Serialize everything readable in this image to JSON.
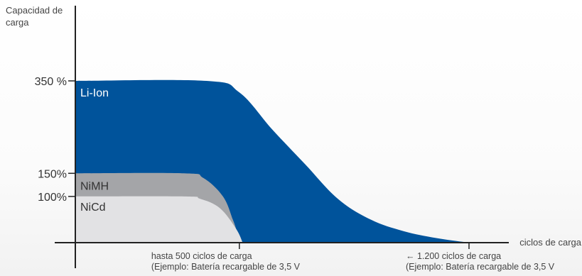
{
  "chart_data": {
    "type": "area",
    "ylabel_lines": [
      "Capacidad de",
      "carga"
    ],
    "xlabel": "ciclos de carga",
    "y_ticks": [
      {
        "value": 350,
        "label": "350 %"
      },
      {
        "value": 150,
        "label": "150%"
      },
      {
        "value": 100,
        "label": "100%"
      }
    ],
    "x_ticks": [
      {
        "value": 500,
        "lines": [
          "hasta 500 ciclos de carga",
          "(Ejemplo: Batería recargable de 3,5 V"
        ]
      },
      {
        "value": 1200,
        "lines": [
          "← 1.200 ciclos de carga",
          "(Ejemplo: Batería recargable de 3,5 V"
        ]
      }
    ],
    "xlim": [
      0,
      1500
    ],
    "ylim": [
      0,
      350
    ],
    "series": [
      {
        "name": "Li-Ion",
        "color": "#00539b",
        "text_color": "#ffffff",
        "points": [
          [
            0,
            350
          ],
          [
            400,
            350
          ],
          [
            500,
            325
          ],
          [
            600,
            245
          ],
          [
            700,
            170
          ],
          [
            800,
            95
          ],
          [
            900,
            50
          ],
          [
            1000,
            25
          ],
          [
            1100,
            10
          ],
          [
            1200,
            0
          ]
        ]
      },
      {
        "name": "NiMH",
        "color": "#a4a5a8",
        "text_color": "#333333",
        "points": [
          [
            0,
            150
          ],
          [
            330,
            150
          ],
          [
            390,
            140
          ],
          [
            450,
            100
          ],
          [
            480,
            50
          ],
          [
            490,
            30
          ]
        ]
      },
      {
        "name": "NiCd",
        "color": "#e2e2e4",
        "text_color": "#333333",
        "points": [
          [
            0,
            100
          ],
          [
            330,
            100
          ],
          [
            380,
            95
          ],
          [
            440,
            75
          ],
          [
            490,
            30
          ],
          [
            510,
            0
          ]
        ]
      }
    ],
    "grid": false,
    "legend": "none (series labeled inside areas)"
  }
}
